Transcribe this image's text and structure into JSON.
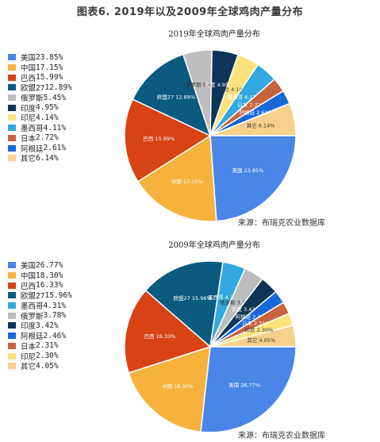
{
  "figure_title": "图表6. 2019年以及2009年全球鸡肉产量分布",
  "colors": {
    "美国": "#4A86E8",
    "中国": "#F6B23D",
    "巴西": "#D84315",
    "欧盟27": "#0B5A80",
    "俄罗斯": "#BDBDBD",
    "印度": "#0E3557",
    "印尼": "#FBE27C",
    "墨西哥": "#33A8E0",
    "日本": "#C8633F",
    "阿根廷": "#1768D8",
    "其它": "#F7D08C"
  },
  "chart_data": [
    {
      "type": "pie",
      "title": "2019年全球鸡肉产量分布",
      "source": "来源：布瑞克农业数据库",
      "legend_position": "left",
      "slices": [
        {
          "label": "美国",
          "value": 23.85,
          "text": "23.85%"
        },
        {
          "label": "中国",
          "value": 17.15,
          "text": "17.15%"
        },
        {
          "label": "巴西",
          "value": 15.99,
          "text": "15.99%"
        },
        {
          "label": "欧盟27",
          "value": 12.89,
          "text": "12.89%"
        },
        {
          "label": "俄罗斯",
          "value": 5.45,
          "text": "5.45%"
        },
        {
          "label": "印度",
          "value": 4.95,
          "text": "4.95%"
        },
        {
          "label": "印尼",
          "value": 4.14,
          "text": "4.14%"
        },
        {
          "label": "墨西哥",
          "value": 4.11,
          "text": "4.11%"
        },
        {
          "label": "日本",
          "value": 2.72,
          "text": "2.72%"
        },
        {
          "label": "阿根廷",
          "value": 2.61,
          "text": "2.61%"
        },
        {
          "label": "其它",
          "value": 6.14,
          "text": "6.14%"
        }
      ]
    },
    {
      "type": "pie",
      "title": "2009年全球鸡肉产量分布",
      "source": "来源：布瑞克农业数据库",
      "legend_position": "left",
      "slices": [
        {
          "label": "美国",
          "value": 26.77,
          "text": "26.77%"
        },
        {
          "label": "中国",
          "value": 18.3,
          "text": "18.30%"
        },
        {
          "label": "巴西",
          "value": 16.33,
          "text": "16.33%"
        },
        {
          "label": "欧盟27",
          "value": 15.96,
          "text": "15.96%"
        },
        {
          "label": "墨西哥",
          "value": 4.31,
          "text": "4.31%"
        },
        {
          "label": "俄罗斯",
          "value": 3.78,
          "text": "3.78%"
        },
        {
          "label": "印度",
          "value": 3.42,
          "text": "3.42%"
        },
        {
          "label": "阿根廷",
          "value": 2.46,
          "text": "2.46%"
        },
        {
          "label": "日本",
          "value": 2.31,
          "text": "2.31%"
        },
        {
          "label": "印尼",
          "value": 2.3,
          "text": "2.30%"
        },
        {
          "label": "其它",
          "value": 4.05,
          "text": "4.05%"
        }
      ]
    }
  ]
}
